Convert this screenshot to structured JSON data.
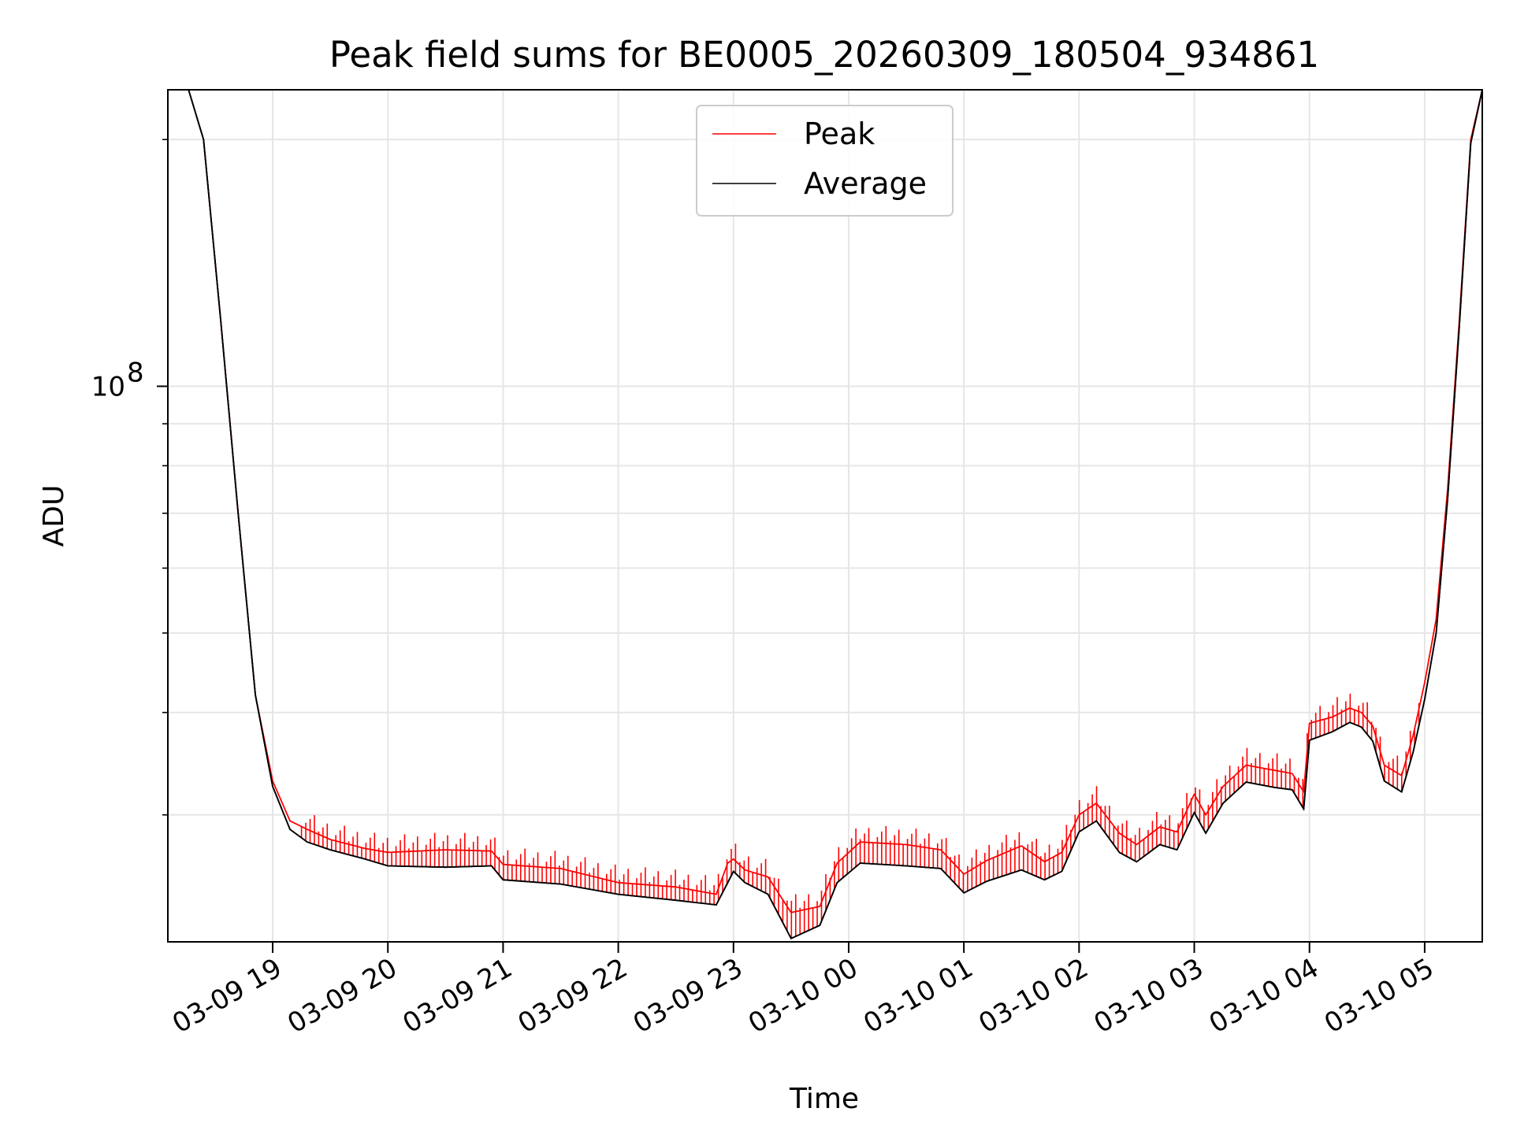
{
  "chart_data": {
    "type": "line",
    "title": "Peak field sums for BE0005_20260309_180504_934861",
    "xlabel": "Time",
    "ylabel": "ADU",
    "yscale": "log",
    "grid": true,
    "legend_position": "top-center",
    "x_unit": "hours since 03-09 18:00",
    "xlim": [
      18.09,
      29.5
    ],
    "ylim": [
      21000000,
      230000000
    ],
    "x_ticks": [
      {
        "value": 19,
        "label": "03-09 19"
      },
      {
        "value": 20,
        "label": "03-09 20"
      },
      {
        "value": 21,
        "label": "03-09 21"
      },
      {
        "value": 22,
        "label": "03-09 22"
      },
      {
        "value": 23,
        "label": "03-09 23"
      },
      {
        "value": 24,
        "label": "03-10 00"
      },
      {
        "value": 25,
        "label": "03-10 01"
      },
      {
        "value": 26,
        "label": "03-10 02"
      },
      {
        "value": 27,
        "label": "03-10 03"
      },
      {
        "value": 28,
        "label": "03-10 04"
      },
      {
        "value": 29,
        "label": "03-10 05"
      }
    ],
    "y_major_ticks": [
      {
        "value": 100000000,
        "base": "10",
        "exp": "8"
      }
    ],
    "y_minor_ticks": [
      30000000,
      40000000,
      50000000,
      60000000,
      70000000,
      80000000,
      90000000,
      200000000
    ],
    "series": [
      {
        "name": "Peak",
        "color": "#ff0000",
        "x": [
          18.27,
          18.4,
          18.55,
          18.7,
          18.85,
          19.0,
          19.15,
          19.3,
          19.5,
          19.8,
          20.0,
          20.5,
          20.9,
          21.0,
          21.5,
          22.0,
          22.5,
          22.85,
          22.95,
          23.0,
          23.1,
          23.3,
          23.5,
          23.75,
          23.9,
          24.1,
          24.5,
          24.8,
          25.0,
          25.2,
          25.5,
          25.7,
          25.85,
          26.0,
          26.15,
          26.35,
          26.5,
          26.7,
          26.85,
          27.0,
          27.1,
          27.25,
          27.45,
          27.7,
          27.85,
          27.95,
          28.0,
          28.2,
          28.35,
          28.45,
          28.55,
          28.65,
          28.8,
          28.9,
          29.0,
          29.1,
          29.2,
          29.3,
          29.4,
          29.5
        ],
        "y": [
          230000000,
          200000000,
          120000000,
          70000000,
          42000000,
          33000000,
          29500000,
          28800000,
          28000000,
          27300000,
          27000000,
          27200000,
          27100000,
          26100000,
          25800000,
          24800000,
          24500000,
          24000000,
          26200000,
          26500000,
          25700000,
          25200000,
          22800000,
          23200000,
          26200000,
          27800000,
          27600000,
          27200000,
          25400000,
          26400000,
          27500000,
          26300000,
          27000000,
          30000000,
          31000000,
          28500000,
          27600000,
          29000000,
          28600000,
          31800000,
          30000000,
          32500000,
          34500000,
          34000000,
          33700000,
          32000000,
          38800000,
          39500000,
          40500000,
          40000000,
          38500000,
          34500000,
          33500000,
          37500000,
          43500000,
          52000000,
          75000000,
          120000000,
          200000000,
          230000000
        ]
      },
      {
        "name": "Average",
        "color": "#000000",
        "x": [
          18.27,
          18.4,
          18.55,
          18.7,
          18.85,
          19.0,
          19.15,
          19.3,
          19.5,
          19.8,
          20.0,
          20.5,
          20.9,
          21.0,
          21.5,
          22.0,
          22.5,
          22.85,
          22.95,
          23.0,
          23.1,
          23.3,
          23.5,
          23.75,
          23.9,
          24.1,
          24.5,
          24.8,
          25.0,
          25.2,
          25.5,
          25.7,
          25.85,
          26.0,
          26.15,
          26.35,
          26.5,
          26.7,
          26.85,
          27.0,
          27.1,
          27.25,
          27.45,
          27.7,
          27.85,
          27.95,
          28.0,
          28.2,
          28.35,
          28.45,
          28.55,
          28.65,
          28.8,
          28.9,
          29.0,
          29.1,
          29.2,
          29.3,
          29.4,
          29.5
        ],
        "y": [
          230000000,
          200000000,
          120000000,
          70000000,
          42000000,
          32500000,
          28800000,
          27800000,
          27200000,
          26500000,
          26000000,
          25900000,
          26000000,
          25000000,
          24700000,
          24000000,
          23600000,
          23300000,
          24800000,
          25600000,
          24800000,
          24000000,
          21200000,
          22000000,
          24800000,
          26200000,
          26000000,
          25800000,
          24100000,
          24900000,
          25700000,
          25000000,
          25600000,
          28600000,
          29500000,
          27000000,
          26300000,
          27600000,
          27200000,
          30200000,
          28500000,
          31000000,
          32900000,
          32400000,
          32200000,
          30500000,
          37000000,
          37900000,
          38900000,
          38400000,
          36900000,
          33000000,
          32000000,
          35800000,
          41500000,
          50000000,
          73000000,
          118000000,
          198000000,
          230000000
        ]
      }
    ]
  }
}
